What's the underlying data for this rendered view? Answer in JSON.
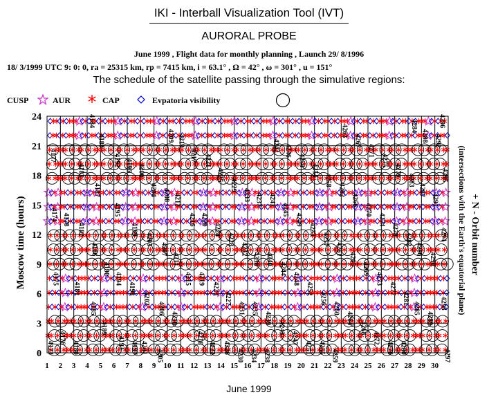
{
  "header": {
    "tool_title": "IKI - Interball Visualization Tool (IVT)",
    "probe": "AURORAL PROBE",
    "line1": "June 1999 ,  Flight data for monthly planning ,   Launch 29/ 8/1996",
    "line2": "18/ 3/1999 UTC  9: 0: 0, ra =  25315 km, rp =   7415 km, i = 63.1° , Ω =  42° , ω = 301° , u = 151°",
    "schedule": "The schedule of the satellite passing through the simulative regions:"
  },
  "legend": {
    "cusp": "CUSP",
    "aur": "AUR",
    "cap": "CAP",
    "evpatoria": "Evpatoria visibility"
  },
  "colors": {
    "aur": "#cc33cc",
    "cap": "#ff0000",
    "evpatoria": "#0000cc",
    "cusp": "#000000",
    "grid": "#000000"
  },
  "chart_data": {
    "type": "scatter",
    "title": "IKI - Interball Visualization Tool (IVT)",
    "xlabel": "June 1999",
    "ylabel": "Moscow time (hours)",
    "right_label_1": "+ N - Orbit number",
    "right_label_2": "(intersections with the Earth's equatorial plane)",
    "xlim": [
      1,
      31
    ],
    "ylim": [
      0,
      24
    ],
    "x_ticks": [
      1,
      2,
      3,
      4,
      5,
      6,
      7,
      8,
      9,
      10,
      11,
      12,
      13,
      14,
      15,
      16,
      17,
      18,
      19,
      20,
      21,
      22,
      23,
      24,
      25,
      26,
      27,
      28,
      29,
      30
    ],
    "y_ticks": [
      0,
      3,
      6,
      9,
      12,
      15,
      18,
      21,
      24
    ],
    "grid": true,
    "legend_position": "top",
    "orbit_period_hours": 5.8,
    "first_orbit": 4173,
    "series": [
      {
        "name": "CUSP",
        "marker": "large-circle"
      },
      {
        "name": "AUR",
        "marker": "star"
      },
      {
        "name": "CAP",
        "marker": "asterisk"
      },
      {
        "name": "Evpatoria visibility",
        "marker": "small-diamond"
      }
    ],
    "orbit_labels": [
      {
        "n": "4173",
        "x": 1.1,
        "y": 0.5
      },
      {
        "n": "4174",
        "x": 1.4,
        "y": 14
      },
      {
        "n": "4175",
        "x": 1.5,
        "y": 7.5
      },
      {
        "n": "4176",
        "x": 2.0,
        "y": 1.5
      },
      {
        "n": "4177",
        "x": 1.3,
        "y": 20
      },
      {
        "n": "4178",
        "x": 2.3,
        "y": 13.5
      },
      {
        "n": "4180",
        "x": 3.0,
        "y": 0.5
      },
      {
        "n": "4181",
        "x": 3.1,
        "y": 6.5
      },
      {
        "n": "4182",
        "x": 3.4,
        "y": 12.5
      },
      {
        "n": "4183",
        "x": 3.4,
        "y": 18.5
      },
      {
        "n": "4184",
        "x": 4.2,
        "y": 23.5
      },
      {
        "n": "4185",
        "x": 4.3,
        "y": 4.5
      },
      {
        "n": "4186",
        "x": 4.4,
        "y": 10.5
      },
      {
        "n": "4187",
        "x": 4.6,
        "y": 16.5
      },
      {
        "n": "4188",
        "x": 4.9,
        "y": 21.5
      },
      {
        "n": "4189",
        "x": 5.1,
        "y": 2.5
      },
      {
        "n": "4190",
        "x": 5.3,
        "y": 8.5
      },
      {
        "n": "4192",
        "x": 6.1,
        "y": 19.5
      },
      {
        "n": "4193",
        "x": 6.4,
        "y": 1.0
      },
      {
        "n": "4194",
        "x": 6.2,
        "y": 7.5
      },
      {
        "n": "4195",
        "x": 6.1,
        "y": 14.5
      },
      {
        "n": "4196",
        "x": 7.0,
        "y": 19.0
      },
      {
        "n": "4197",
        "x": 7.4,
        "y": 0.5
      },
      {
        "n": "4198",
        "x": 7.2,
        "y": 6.5
      },
      {
        "n": "4199",
        "x": 7.4,
        "y": 12.5
      },
      {
        "n": "4200",
        "x": 7.9,
        "y": 18.5
      },
      {
        "n": "4201",
        "x": 8.1,
        "y": 0.5
      },
      {
        "n": "4202",
        "x": 8.3,
        "y": 5.5
      },
      {
        "n": "4203",
        "x": 8.5,
        "y": 11.5
      },
      {
        "n": "4204",
        "x": 8.8,
        "y": 16.5
      },
      {
        "n": "4205",
        "x": 9.3,
        "y": -0.3
      },
      {
        "n": "4206",
        "x": 9.4,
        "y": 4.5
      },
      {
        "n": "4207",
        "x": 9.6,
        "y": 10.5
      },
      {
        "n": "4208",
        "x": 9.8,
        "y": 16.0
      },
      {
        "n": "4209",
        "x": 10.1,
        "y": 22.0
      },
      {
        "n": "4210",
        "x": 10.4,
        "y": 3.5
      },
      {
        "n": "4211",
        "x": 10.5,
        "y": 9.5
      },
      {
        "n": "4212",
        "x": 10.6,
        "y": 15.5
      },
      {
        "n": "4213",
        "x": 10.9,
        "y": 21.5
      },
      {
        "n": "4215",
        "x": 11.4,
        "y": 7.5
      },
      {
        "n": "4216",
        "x": 11.7,
        "y": 13.5
      },
      {
        "n": "4217",
        "x": 11.8,
        "y": 20.0
      },
      {
        "n": "4218",
        "x": 12.3,
        "y": 1.5
      },
      {
        "n": "4219",
        "x": 12.4,
        "y": 7.5
      },
      {
        "n": "4220",
        "x": 12.6,
        "y": 13.5
      },
      {
        "n": "4221",
        "x": 12.9,
        "y": 19.5
      },
      {
        "n": "4222",
        "x": 13.2,
        "y": 0.5
      },
      {
        "n": "4223",
        "x": 13.5,
        "y": 6.5
      },
      {
        "n": "4224",
        "x": 13.6,
        "y": 12.5
      },
      {
        "n": "4225",
        "x": 13.8,
        "y": 18.0
      },
      {
        "n": "4226",
        "x": 14.3,
        "y": 0.5
      },
      {
        "n": "4227",
        "x": 14.4,
        "y": 5.5
      },
      {
        "n": "4228",
        "x": 14.6,
        "y": 11.5
      },
      {
        "n": "4229",
        "x": 14.8,
        "y": 17.0
      },
      {
        "n": "4230",
        "x": 15.3,
        "y": -0.3
      },
      {
        "n": "4231",
        "x": 15.4,
        "y": 4.5
      },
      {
        "n": "4232",
        "x": 15.6,
        "y": 10.5
      },
      {
        "n": "4233",
        "x": 15.8,
        "y": 16.0
      },
      {
        "n": "4234",
        "x": 16.3,
        "y": -0.3
      },
      {
        "n": "4235",
        "x": 16.4,
        "y": 4.5
      },
      {
        "n": "4236",
        "x": 16.5,
        "y": 9.5
      },
      {
        "n": "4237",
        "x": 16.7,
        "y": 15.5
      },
      {
        "n": "4238",
        "x": 17.3,
        "y": -0.3
      },
      {
        "n": "4239",
        "x": 17.4,
        "y": 3.5
      },
      {
        "n": "4240",
        "x": 17.5,
        "y": 9.5
      },
      {
        "n": "4241",
        "x": 17.7,
        "y": 15.5
      },
      {
        "n": "4242",
        "x": 18.0,
        "y": 21.0
      },
      {
        "n": "4243",
        "x": 18.4,
        "y": 2.5
      },
      {
        "n": "4244",
        "x": 18.5,
        "y": 8.5
      },
      {
        "n": "4245",
        "x": 18.7,
        "y": 14.5
      },
      {
        "n": "4246",
        "x": 18.9,
        "y": 20.5
      },
      {
        "n": "4247",
        "x": 19.4,
        "y": 1.5
      },
      {
        "n": "4248",
        "x": 19.5,
        "y": 7.5
      },
      {
        "n": "4249",
        "x": 19.7,
        "y": 13.5
      },
      {
        "n": "4250",
        "x": 19.9,
        "y": 19.5
      },
      {
        "n": "4251",
        "x": 20.4,
        "y": 0.5
      },
      {
        "n": "4252",
        "x": 20.5,
        "y": 6.5
      },
      {
        "n": "4253",
        "x": 20.7,
        "y": 12.5
      },
      {
        "n": "4254",
        "x": 20.9,
        "y": 18.5
      },
      {
        "n": "4255",
        "x": 21.4,
        "y": 0.5
      },
      {
        "n": "4256",
        "x": 21.5,
        "y": 5.5
      },
      {
        "n": "4257",
        "x": 21.7,
        "y": 11.5
      },
      {
        "n": "4258",
        "x": 21.9,
        "y": 17.5
      },
      {
        "n": "4259",
        "x": 22.4,
        "y": -0.3
      },
      {
        "n": "4260",
        "x": 22.5,
        "y": 4.5
      },
      {
        "n": "4261",
        "x": 22.7,
        "y": 10.5
      },
      {
        "n": "4262",
        "x": 22.9,
        "y": 16.5
      },
      {
        "n": "4263",
        "x": 23.1,
        "y": 22.5
      },
      {
        "n": "4264",
        "x": 23.5,
        "y": 3.5
      },
      {
        "n": "4265",
        "x": 23.7,
        "y": 9.5
      },
      {
        "n": "4266",
        "x": 23.9,
        "y": 15.5
      },
      {
        "n": "4267",
        "x": 24.1,
        "y": 21.5
      },
      {
        "n": "4268",
        "x": 24.5,
        "y": 2.5
      },
      {
        "n": "4269",
        "x": 24.7,
        "y": 8.5
      },
      {
        "n": "4270",
        "x": 24.9,
        "y": 14.5
      },
      {
        "n": "4271",
        "x": 25.1,
        "y": 20.5
      },
      {
        "n": "4272",
        "x": 25.5,
        "y": 1.5
      },
      {
        "n": "4273",
        "x": 25.7,
        "y": 7.5
      },
      {
        "n": "4274",
        "x": 25.9,
        "y": 13.5
      },
      {
        "n": "4275",
        "x": 26.1,
        "y": 19.5
      },
      {
        "n": "4276",
        "x": 26.5,
        "y": 0.5
      },
      {
        "n": "4277",
        "x": 26.7,
        "y": 6.5
      },
      {
        "n": "4278",
        "x": 26.9,
        "y": 12.5
      },
      {
        "n": "4279",
        "x": 27.1,
        "y": 18.5
      },
      {
        "n": "4280",
        "x": 27.5,
        "y": 0.5
      },
      {
        "n": "4281",
        "x": 27.7,
        "y": 5.5
      },
      {
        "n": "4282",
        "x": 27.9,
        "y": 11.5
      },
      {
        "n": "4283",
        "x": 28.1,
        "y": 17.5
      },
      {
        "n": "4284",
        "x": 28.3,
        "y": 23.0
      },
      {
        "n": "4285",
        "x": 28.5,
        "y": 4.5
      },
      {
        "n": "4286",
        "x": 28.7,
        "y": 10.5
      },
      {
        "n": "4287",
        "x": 28.9,
        "y": 16.5
      },
      {
        "n": "4288",
        "x": 29.1,
        "y": 22.0
      },
      {
        "n": "4289",
        "x": 29.5,
        "y": 3.5
      },
      {
        "n": "4290",
        "x": 29.7,
        "y": 9.5
      },
      {
        "n": "4291",
        "x": 29.9,
        "y": 15.5
      },
      {
        "n": "4292",
        "x": 30.1,
        "y": 21.5
      },
      {
        "n": "4293",
        "x": 30.5,
        "y": 5.0
      },
      {
        "n": "4294",
        "x": 30.5,
        "y": 12.0
      },
      {
        "n": "4295",
        "x": 30.6,
        "y": 18.0
      },
      {
        "n": "4296",
        "x": 30.4,
        "y": 23.5
      },
      {
        "n": "4297",
        "x": 30.8,
        "y": -0.3
      }
    ]
  }
}
